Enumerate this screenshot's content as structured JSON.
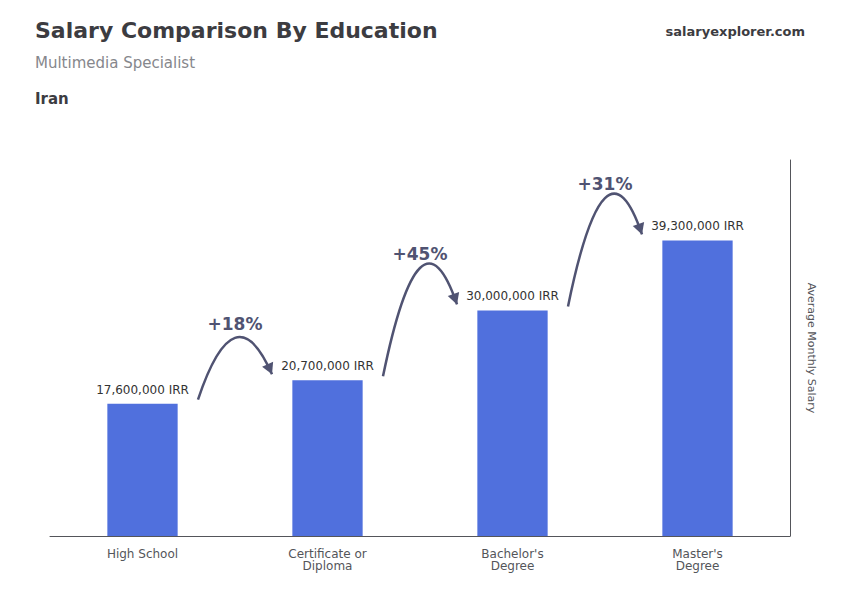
{
  "chart_data": {
    "type": "bar",
    "title": "Salary Comparison By Education",
    "subtitle": "Multimedia Specialist",
    "country": "Iran",
    "brand": "salaryexplorer.com",
    "ylabel": "Average Monthly Salary",
    "categories": [
      "High School",
      "Certificate or\nDiploma",
      "Bachelor's\nDegree",
      "Master's\nDegree"
    ],
    "values": [
      17600000,
      20700000,
      30000000,
      39300000
    ],
    "value_labels": [
      "17,600,000 IRR",
      "20,700,000 IRR",
      "30,000,000 IRR",
      "39,300,000 IRR"
    ],
    "data_labels": true,
    "annotations": [
      "+18%",
      "+45%",
      "+31%"
    ],
    "ylim": [
      0,
      50000000
    ],
    "yticks": [],
    "tick_labels": "x",
    "grid": false
  }
}
